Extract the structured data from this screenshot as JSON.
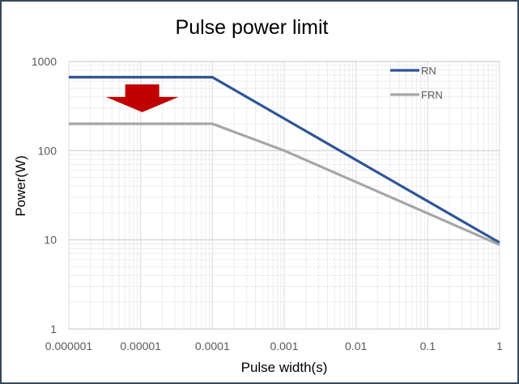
{
  "chart_data": {
    "type": "line",
    "title": "Pulse power limit",
    "xlabel": "Pulse width(s)",
    "ylabel": "Power(W)",
    "x_scale": "log",
    "y_scale": "log",
    "xlim": [
      1e-06,
      1
    ],
    "ylim": [
      1,
      1000
    ],
    "x_ticks": [
      "0.000001",
      "0.00001",
      "0.0001",
      "0.001",
      "0.01",
      "0.1",
      "1"
    ],
    "y_ticks": [
      "1",
      "10",
      "100",
      "1000"
    ],
    "grid": true,
    "legend_position": "top-right inside",
    "series": [
      {
        "name": "RN",
        "color": "#2F5597",
        "x": [
          1e-06,
          0.0001,
          1
        ],
        "y": [
          665,
          665,
          9.3
        ]
      },
      {
        "name": "FRN",
        "color": "#A6A6A6",
        "x": [
          1e-06,
          0.0001,
          0.001,
          1
        ],
        "y": [
          200,
          200,
          100,
          8.8
        ]
      }
    ],
    "annotations": [
      {
        "type": "down-arrow",
        "color": "#C00000",
        "x_center": 1e-05,
        "from_y": 520,
        "to_y": 270
      }
    ]
  }
}
